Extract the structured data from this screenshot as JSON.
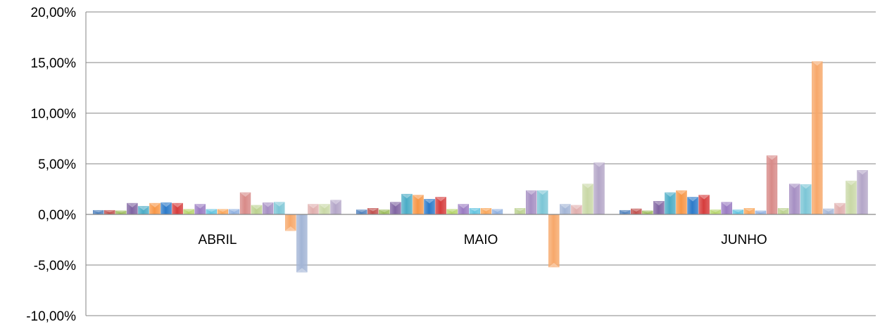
{
  "chart_data": {
    "type": "bar",
    "title": "",
    "xlabel": "",
    "ylabel": "",
    "ylim": [
      -10,
      20
    ],
    "yticks": [
      -10,
      -5,
      0,
      5,
      10,
      15,
      20
    ],
    "ytick_labels": [
      "-10,00%",
      "-5,00%",
      "0,00%",
      "5,00%",
      "10,00%",
      "15,00%",
      "20,00%"
    ],
    "grid": true,
    "legend": "none",
    "categories": [
      "ABRIL",
      "MAIO",
      "JUNHO"
    ],
    "palette": [
      "#4F81BD",
      "#C0504D",
      "#9BBB59",
      "#8064A2",
      "#4BACC6",
      "#F79646",
      "#2C7AC9",
      "#D63C3C",
      "#B5D46A",
      "#9A7BC2",
      "#62C4E0",
      "#F9A65A",
      "#8FB0E0",
      "#D88A88",
      "#BBD18F",
      "#A68FC3",
      "#7CC6D6",
      "#F7A86A",
      "#A3B5D6",
      "#E0AEAD",
      "#C9D8A6",
      "#B4A6C8"
    ],
    "series_values": [
      [
        0.4,
        0.4,
        0.35,
        1.1,
        0.8,
        1.1,
        1.15,
        1.1,
        0.5,
        1.0,
        0.5,
        0.5,
        0.5,
        2.15,
        0.9,
        1.15,
        1.2,
        -1.6,
        -5.7,
        1.0,
        1.0,
        1.4
      ],
      [
        0.45,
        0.6,
        0.45,
        1.2,
        2.0,
        1.9,
        1.5,
        1.7,
        0.5,
        1.0,
        0.6,
        0.6,
        0.5,
        0.0,
        0.6,
        2.35,
        2.35,
        -5.2,
        1.0,
        0.9,
        3.0,
        5.1
      ],
      [
        0.4,
        0.55,
        0.35,
        1.3,
        2.15,
        2.35,
        1.7,
        1.9,
        0.45,
        1.2,
        0.45,
        0.6,
        0.35,
        5.8,
        0.6,
        3.0,
        2.95,
        15.1,
        0.55,
        1.1,
        3.3,
        4.35
      ]
    ]
  }
}
